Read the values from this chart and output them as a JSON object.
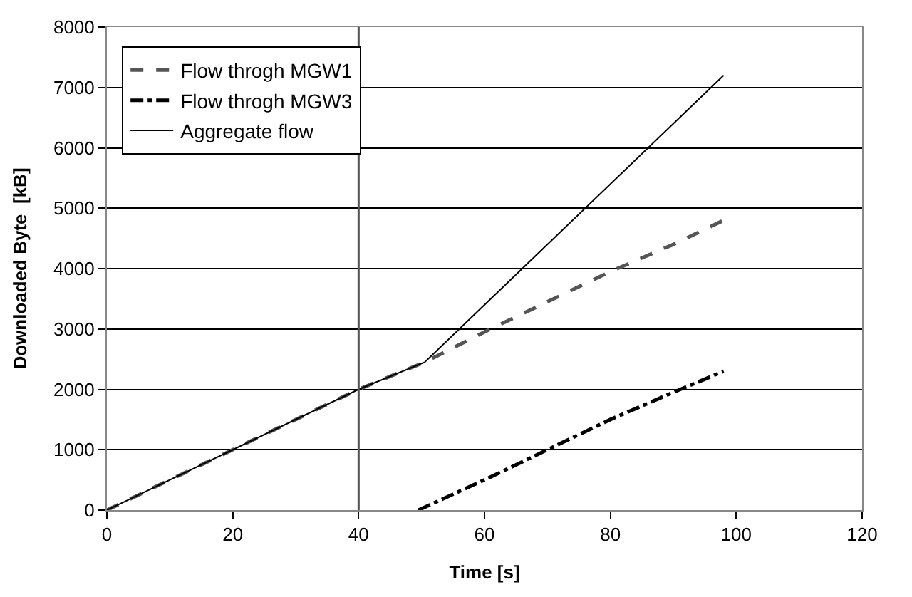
{
  "chart_data": {
    "type": "line",
    "xlabel": "Time [s]",
    "ylabel": "Downloaded Byte  [kB]",
    "xlim": [
      0,
      120
    ],
    "xticks": [
      0,
      20,
      40,
      60,
      80,
      100,
      120
    ],
    "ylim": [
      0,
      8000
    ],
    "yticks": [
      0,
      1000,
      2000,
      3000,
      4000,
      5000,
      6000,
      7000,
      8000
    ],
    "grid": "y",
    "legend": "top left",
    "marker": "none",
    "series": [
      {
        "name": "Flow throgh MGW1",
        "color": "#555555",
        "line_style": "dashed",
        "x": [
          0,
          20,
          40,
          50.5,
          60,
          70,
          80,
          90,
          98
        ],
        "values": [
          0,
          1000,
          2000,
          2450,
          2950,
          3450,
          3950,
          4400,
          4800
        ]
      },
      {
        "name": "Flow throgh MGW3",
        "color": "#000000",
        "line_style": "dotted",
        "x": [
          49.5,
          60,
          70,
          80,
          90,
          98
        ],
        "values": [
          0,
          500,
          1000,
          1500,
          1950,
          2300
        ]
      },
      {
        "name": "Aggregate flow",
        "color": "#000000",
        "line_style": "solid",
        "x": [
          0,
          40,
          50.5,
          98
        ],
        "values": [
          0,
          2000,
          2450,
          7200
        ]
      }
    ],
    "ref_lines": [
      {
        "axis": "x",
        "value": 40,
        "color": "#555555"
      }
    ]
  }
}
